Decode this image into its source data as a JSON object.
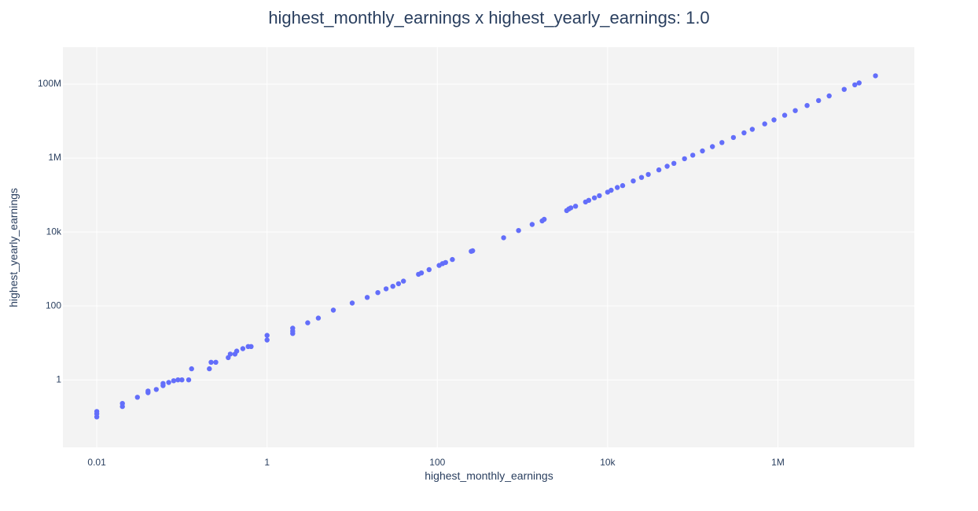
{
  "chart_data": {
    "type": "scatter",
    "title": "highest_monthly_earnings x highest_yearly_earnings: 1.0",
    "xlabel": "highest_monthly_earnings",
    "ylabel": "highest_yearly_earnings",
    "x_scale": "log",
    "y_scale": "log",
    "xlim": [
      0.004,
      40000000
    ],
    "ylim": [
      0.015,
      1000000000
    ],
    "x_ticks": [
      {
        "value": 0.01,
        "label": "0.01"
      },
      {
        "value": 1,
        "label": "1"
      },
      {
        "value": 100,
        "label": "100"
      },
      {
        "value": 10000,
        "label": "10k"
      },
      {
        "value": 1000000,
        "label": "1M"
      }
    ],
    "y_ticks": [
      {
        "value": 1,
        "label": "1"
      },
      {
        "value": 100,
        "label": "100"
      },
      {
        "value": 10000,
        "label": "10k"
      },
      {
        "value": 1000000,
        "label": "1M"
      },
      {
        "value": 100000000,
        "label": "100M"
      }
    ],
    "grid": true,
    "colors": {
      "marker": "#636efa",
      "plot_bg": "#f3f3f3",
      "grid": "#ffffff",
      "text": "#2a3f5f"
    },
    "series": [
      {
        "x": [
          0.01,
          0.01,
          0.01,
          0.02,
          0.02,
          0.03,
          0.04,
          0.04,
          0.05,
          0.06,
          0.06,
          0.07,
          0.08,
          0.09,
          0.1,
          0.12,
          0.13,
          0.21,
          0.22,
          0.25,
          0.35,
          0.37,
          0.42,
          0.44,
          0.52,
          0.6,
          0.65,
          1,
          1,
          2,
          2,
          2,
          3,
          4,
          6,
          10,
          15,
          20,
          25,
          30,
          35,
          40,
          60,
          65,
          80,
          105,
          115,
          125,
          150,
          250,
          260,
          600,
          900,
          1300,
          1700,
          1800,
          3300,
          3500,
          3700,
          4200,
          5500,
          6000,
          7000,
          8000,
          10000,
          11000,
          13000,
          15000,
          20000,
          25000,
          30000,
          40000,
          50000,
          60000,
          80000,
          100000,
          130000,
          170000,
          220000,
          300000,
          400000,
          500000,
          700000,
          900000,
          1200000,
          1600000,
          2200000,
          3000000,
          4000000,
          6000000,
          8000000,
          9000000,
          14000000
        ],
        "y": [
          0.1,
          0.12,
          0.14,
          0.19,
          0.23,
          0.34,
          0.45,
          0.5,
          0.55,
          0.7,
          0.8,
          0.85,
          0.95,
          1.0,
          1.0,
          1.0,
          2.0,
          2.0,
          3.0,
          3.0,
          4.0,
          5.0,
          5.0,
          6.0,
          7.0,
          8.0,
          8.0,
          12.0,
          16.0,
          18.0,
          21.0,
          25.0,
          35.0,
          47.0,
          77.0,
          120.0,
          170.0,
          230.0,
          290.0,
          340.0,
          400.0,
          470.0,
          720.0,
          780.0,
          960.0,
          1250.0,
          1400.0,
          1500.0,
          1800.0,
          3000.0,
          3100.0,
          7000.0,
          11000.0,
          16000.0,
          20000.0,
          22000.0,
          38000.0,
          42000.0,
          45000.0,
          50000.0,
          65000.0,
          72000.0,
          84000.0,
          96000.0,
          120000.0,
          135000.0,
          160000.0,
          180000.0,
          240000.0,
          300000.0,
          360000.0,
          480000.0,
          600000.0,
          720000.0,
          960000.0,
          1200000.0,
          1560000.0,
          2040000.0,
          2640000.0,
          3600000.0,
          4800000.0,
          6000000.0,
          8400000.0,
          10800000.0,
          14400000.0,
          19200000.0,
          26400000.0,
          36000000.0,
          48000000.0,
          72000000.0,
          96000000.0,
          108000000.0,
          168000000.0
        ]
      }
    ]
  }
}
